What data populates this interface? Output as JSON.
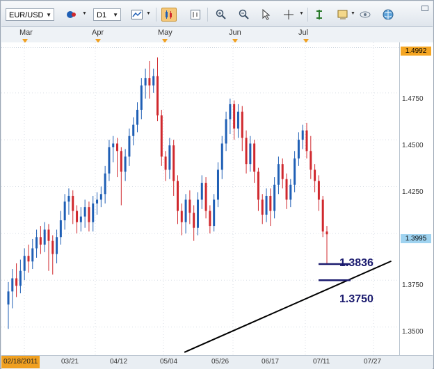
{
  "toolbar": {
    "symbol": "EUR/USD",
    "timeframe": "D1",
    "icons": [
      "settings-icon",
      "indicator-icon",
      "candlestick-icon",
      "bar-chart-icon",
      "zoom-in-icon",
      "zoom-out-icon",
      "cursor-icon",
      "crosshair-icon",
      "line-tool-icon",
      "screenshot-icon",
      "view-icon",
      "globe-icon"
    ]
  },
  "months": [
    "Mar",
    "Apr",
    "May",
    "Jun",
    "Jul"
  ],
  "price_axis": {
    "labels": [
      "1.4750",
      "1.4500",
      "1.4250",
      "1.3750",
      "1.3500"
    ],
    "high_tag": "1.4992",
    "current_tag": "1.3995",
    "colors": {
      "high_tag_bg": "#f5a623",
      "current_tag_bg": "#9fd3f0"
    }
  },
  "date_axis": {
    "first": "02/18/2011",
    "labels": [
      "03/21",
      "04/12",
      "05/04",
      "05/26",
      "06/17",
      "07/11",
      "07/27"
    ]
  },
  "annotations": {
    "upper": "1.3836",
    "lower": "1.3750"
  },
  "colors": {
    "up": "#1f5fb5",
    "down": "#d0282d",
    "trend": "#000000",
    "level": "#1a1a6e"
  },
  "chart_data": {
    "type": "candlestick",
    "ylim": [
      1.335,
      1.502
    ],
    "candles": [
      [
        1.362,
        1.369,
        1.349,
        1.374
      ],
      [
        1.369,
        1.376,
        1.36,
        1.381
      ],
      [
        1.376,
        1.372,
        1.366,
        1.384
      ],
      [
        1.372,
        1.38,
        1.368,
        1.386
      ],
      [
        1.38,
        1.388,
        1.375,
        1.392
      ],
      [
        1.388,
        1.385,
        1.379,
        1.394
      ],
      [
        1.385,
        1.392,
        1.381,
        1.397
      ],
      [
        1.392,
        1.398,
        1.387,
        1.402
      ],
      [
        1.398,
        1.394,
        1.389,
        1.404
      ],
      [
        1.394,
        1.402,
        1.39,
        1.406
      ],
      [
        1.402,
        1.396,
        1.38,
        1.405
      ],
      [
        1.396,
        1.389,
        1.378,
        1.399
      ],
      [
        1.389,
        1.398,
        1.384,
        1.402
      ],
      [
        1.398,
        1.407,
        1.394,
        1.412
      ],
      [
        1.407,
        1.417,
        1.402,
        1.421
      ],
      [
        1.417,
        1.42,
        1.41,
        1.424
      ],
      [
        1.42,
        1.412,
        1.405,
        1.423
      ],
      [
        1.412,
        1.406,
        1.4,
        1.415
      ],
      [
        1.406,
        1.409,
        1.401,
        1.414
      ],
      [
        1.409,
        1.414,
        1.403,
        1.418
      ],
      [
        1.414,
        1.406,
        1.401,
        1.417
      ],
      [
        1.406,
        1.416,
        1.401,
        1.42
      ],
      [
        1.416,
        1.418,
        1.41,
        1.422
      ],
      [
        1.418,
        1.421,
        1.414,
        1.425
      ],
      [
        1.421,
        1.432,
        1.416,
        1.436
      ],
      [
        1.432,
        1.446,
        1.428,
        1.45
      ],
      [
        1.446,
        1.448,
        1.438,
        1.452
      ],
      [
        1.448,
        1.444,
        1.43,
        1.451
      ],
      [
        1.444,
        1.433,
        1.415,
        1.446
      ],
      [
        1.433,
        1.441,
        1.428,
        1.445
      ],
      [
        1.441,
        1.452,
        1.436,
        1.456
      ],
      [
        1.452,
        1.458,
        1.447,
        1.462
      ],
      [
        1.458,
        1.466,
        1.454,
        1.47
      ],
      [
        1.466,
        1.479,
        1.461,
        1.483
      ],
      [
        1.479,
        1.483,
        1.472,
        1.488
      ],
      [
        1.483,
        1.479,
        1.472,
        1.492
      ],
      [
        1.479,
        1.484,
        1.475,
        1.488
      ],
      [
        1.484,
        1.463,
        1.46,
        1.494
      ],
      [
        1.463,
        1.441,
        1.436,
        1.466
      ],
      [
        1.441,
        1.434,
        1.428,
        1.444
      ],
      [
        1.434,
        1.447,
        1.429,
        1.451
      ],
      [
        1.447,
        1.428,
        1.42,
        1.45
      ],
      [
        1.428,
        1.412,
        1.405,
        1.431
      ],
      [
        1.412,
        1.406,
        1.399,
        1.416
      ],
      [
        1.406,
        1.418,
        1.4,
        1.421
      ],
      [
        1.418,
        1.411,
        1.405,
        1.423
      ],
      [
        1.411,
        1.403,
        1.396,
        1.415
      ],
      [
        1.403,
        1.418,
        1.399,
        1.422
      ],
      [
        1.418,
        1.427,
        1.413,
        1.431
      ],
      [
        1.427,
        1.412,
        1.408,
        1.43
      ],
      [
        1.412,
        1.404,
        1.4,
        1.415
      ],
      [
        1.404,
        1.418,
        1.401,
        1.421
      ],
      [
        1.418,
        1.434,
        1.414,
        1.438
      ],
      [
        1.434,
        1.448,
        1.429,
        1.452
      ],
      [
        1.448,
        1.461,
        1.444,
        1.465
      ],
      [
        1.461,
        1.469,
        1.453,
        1.472
      ],
      [
        1.469,
        1.456,
        1.45,
        1.471
      ],
      [
        1.456,
        1.465,
        1.451,
        1.469
      ],
      [
        1.465,
        1.451,
        1.444,
        1.468
      ],
      [
        1.451,
        1.437,
        1.432,
        1.455
      ],
      [
        1.437,
        1.448,
        1.433,
        1.452
      ],
      [
        1.448,
        1.433,
        1.427,
        1.45
      ],
      [
        1.433,
        1.418,
        1.412,
        1.435
      ],
      [
        1.418,
        1.41,
        1.405,
        1.421
      ],
      [
        1.41,
        1.42,
        1.406,
        1.424
      ],
      [
        1.42,
        1.412,
        1.404,
        1.424
      ],
      [
        1.412,
        1.426,
        1.408,
        1.43
      ],
      [
        1.426,
        1.437,
        1.421,
        1.441
      ],
      [
        1.437,
        1.429,
        1.424,
        1.44
      ],
      [
        1.429,
        1.418,
        1.413,
        1.432
      ],
      [
        1.418,
        1.426,
        1.414,
        1.429
      ],
      [
        1.426,
        1.44,
        1.422,
        1.444
      ],
      [
        1.44,
        1.45,
        1.436,
        1.454
      ],
      [
        1.45,
        1.455,
        1.445,
        1.458
      ],
      [
        1.455,
        1.444,
        1.44,
        1.459
      ],
      [
        1.444,
        1.434,
        1.429,
        1.452
      ],
      [
        1.434,
        1.428,
        1.422,
        1.437
      ],
      [
        1.428,
        1.418,
        1.412,
        1.431
      ],
      [
        1.418,
        1.401,
        1.398,
        1.42
      ],
      [
        1.401,
        1.3995,
        1.384,
        1.404
      ]
    ],
    "levels": [
      1.3836,
      1.375
    ],
    "trendline": {
      "from": [
        0.46,
        1.3365
      ],
      "to": [
        0.98,
        1.3852
      ]
    }
  }
}
